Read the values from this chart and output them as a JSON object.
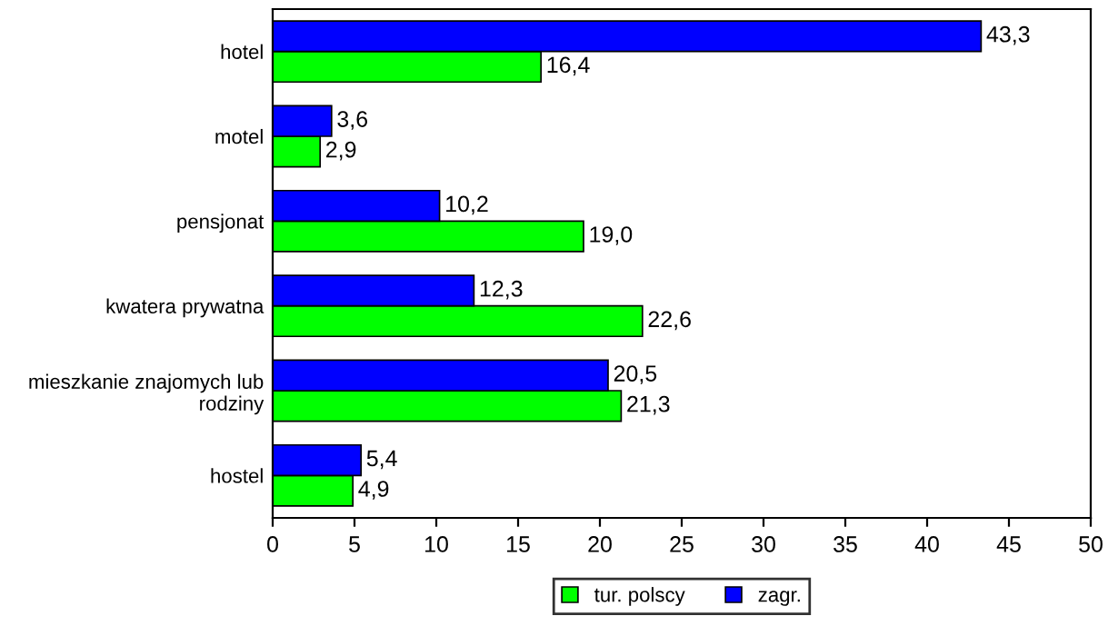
{
  "chart_data": {
    "type": "bar",
    "orientation": "horizontal",
    "categories": [
      "hotel",
      "motel",
      "pensjonat",
      "kwatera prywatna",
      "mieszkanie znajomych lub\nrodziny",
      "hostel"
    ],
    "series": [
      {
        "name": "tur. polscy",
        "color": "#00ff00",
        "values": [
          16.4,
          2.9,
          19.0,
          22.6,
          21.3,
          4.9
        ],
        "value_labels": [
          "16,4",
          "2,9",
          "19,0",
          "22,6",
          "21,3",
          "4,9"
        ]
      },
      {
        "name": "zagr.",
        "color": "#0000ff",
        "values": [
          43.3,
          3.6,
          10.2,
          12.3,
          20.5,
          5.4
        ],
        "value_labels": [
          "43,3",
          "3,6",
          "10,2",
          "12,3",
          "20,5",
          "5,4"
        ]
      }
    ],
    "xlim": [
      0,
      50
    ],
    "xticks": [
      0,
      5,
      10,
      15,
      20,
      25,
      30,
      35,
      40,
      45,
      50
    ],
    "legend": "bottom"
  }
}
